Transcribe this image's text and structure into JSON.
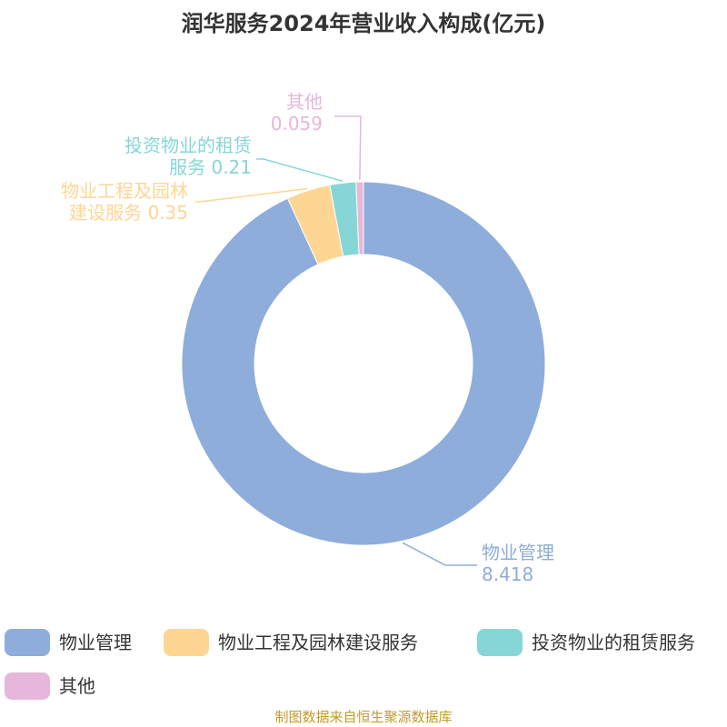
{
  "chart_data": {
    "type": "donut",
    "title": "润华服务2024年营业收入构成(亿元)",
    "categories": [
      "物业管理",
      "物业工程及园林建设服务",
      "投资物业的租赁服务",
      "其他"
    ],
    "values": [
      8.418,
      0.35,
      0.21,
      0.059
    ],
    "colors": [
      "#8eaddb",
      "#fdd694",
      "#87d6d6",
      "#e6b7da"
    ],
    "legend": "bottom",
    "source": "制图数据来自恒生聚源数据库"
  }
}
